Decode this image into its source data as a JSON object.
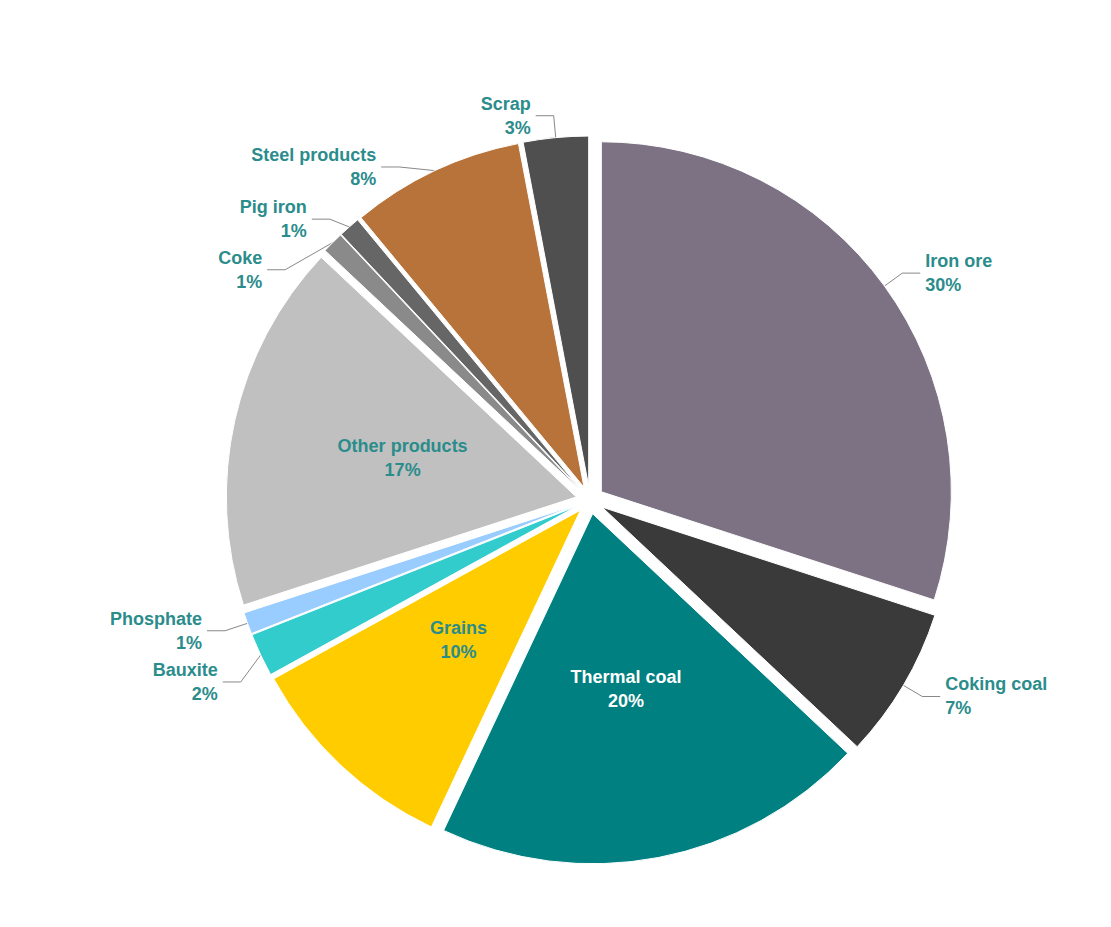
{
  "chart_data": {
    "type": "pie",
    "categories": [
      "Iron ore",
      "Coking coal",
      "Thermal coal",
      "Grains",
      "Bauxite",
      "Phosphate",
      "Other products",
      "Coke",
      "Pig iron",
      "Steel products",
      "Scrap"
    ],
    "values": [
      30,
      7,
      20,
      10,
      2,
      1,
      17,
      1,
      1,
      8,
      3
    ],
    "value_labels": [
      "30%",
      "7%",
      "20%",
      "10%",
      "2%",
      "1%",
      "17%",
      "1%",
      "1%",
      "8%",
      "3%"
    ],
    "colors": [
      "#7d7283",
      "#3a3a3a",
      "#008080",
      "#ffcc00",
      "#33cccc",
      "#99ccff",
      "#c0c0c0",
      "#8a8a8a",
      "#666666",
      "#b8733a",
      "#4f4f4f"
    ],
    "data_labels": true
  }
}
